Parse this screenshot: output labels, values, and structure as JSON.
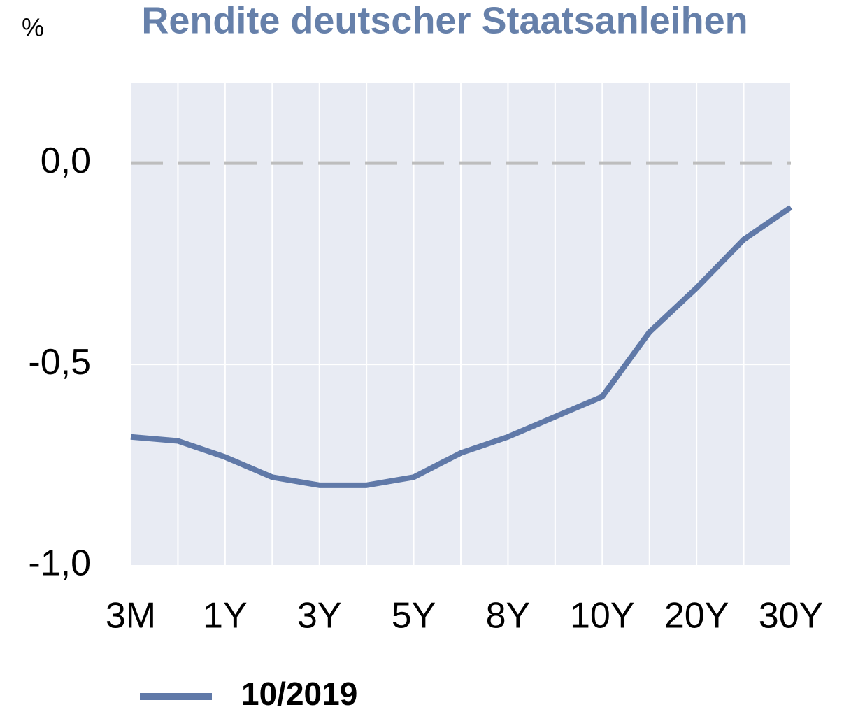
{
  "chart_data": {
    "type": "line",
    "title": "Rendite deutscher Staatsanleihen",
    "y_unit": "%",
    "categories": [
      "3M",
      null,
      "1Y",
      null,
      "3Y",
      null,
      "5Y",
      null,
      "8Y",
      null,
      "10Y",
      null,
      "20Y",
      null,
      "30Y"
    ],
    "series": [
      {
        "name": "10/2019",
        "color": "#6079a8",
        "values": [
          -0.68,
          -0.69,
          -0.73,
          -0.78,
          -0.8,
          -0.8,
          -0.78,
          -0.72,
          -0.68,
          -0.63,
          -0.58,
          -0.42,
          -0.31,
          -0.19,
          -0.11
        ]
      }
    ],
    "ylim": [
      -1.0,
      0.2
    ],
    "yticks": [
      {
        "value": 0,
        "label": "0,0"
      },
      {
        "value": -0.5,
        "label": "-0,5"
      },
      {
        "value": -1.0,
        "label": "-1,0"
      }
    ],
    "grid": true,
    "legend": "bottom"
  }
}
